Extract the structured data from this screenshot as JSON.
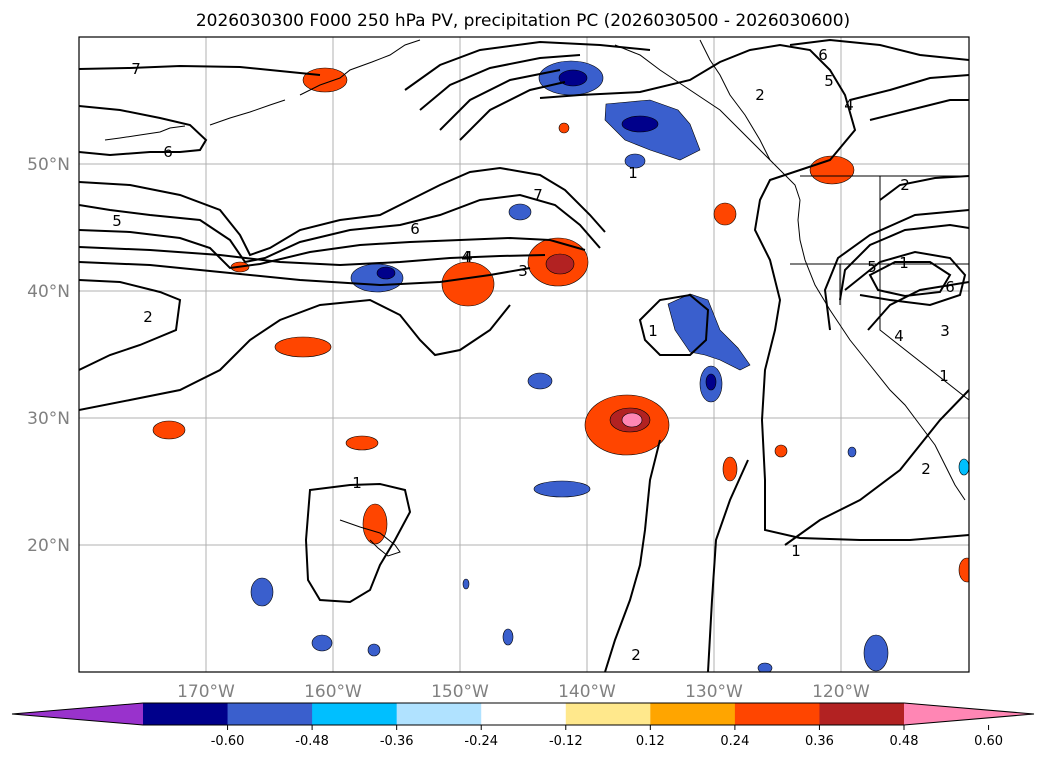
{
  "title": "2026030300 F000 250 hPa PV, precipitation PC (2026030500 - 2026030600)",
  "map": {
    "projection": "PlateCarree",
    "lon_range": [
      -180,
      -110
    ],
    "lat_range": [
      10,
      60
    ],
    "gridlines": true,
    "grid_color": "#b0b0b0",
    "lon_ticks": [
      "170°W",
      "160°W",
      "150°W",
      "140°W",
      "130°W",
      "120°W"
    ],
    "lat_ticks": [
      "20°N",
      "30°N",
      "40°N",
      "50°N"
    ]
  },
  "pv_contour_labels": [
    "7",
    "6",
    "5",
    "2",
    "4",
    "7",
    "6",
    "4",
    "3",
    "1",
    "2",
    "1",
    "1",
    "2",
    "1",
    "1",
    "5",
    "6",
    "4",
    "3",
    "1",
    "2",
    "2",
    "6",
    "5",
    "4"
  ],
  "colorbar": {
    "levels": [
      "-0.60",
      "-0.48",
      "-0.36",
      "-0.24",
      "-0.12",
      "0.12",
      "0.24",
      "0.36",
      "0.48",
      "0.60"
    ],
    "colors": [
      "#9932cc",
      "#00008b",
      "#3a5fcd",
      "#00bfff",
      "#b0e2ff",
      "#ffffff",
      "#ffe88c",
      "#ffa500",
      "#ff4500",
      "#b22222",
      "#ff86b4"
    ],
    "extend": "both"
  }
}
